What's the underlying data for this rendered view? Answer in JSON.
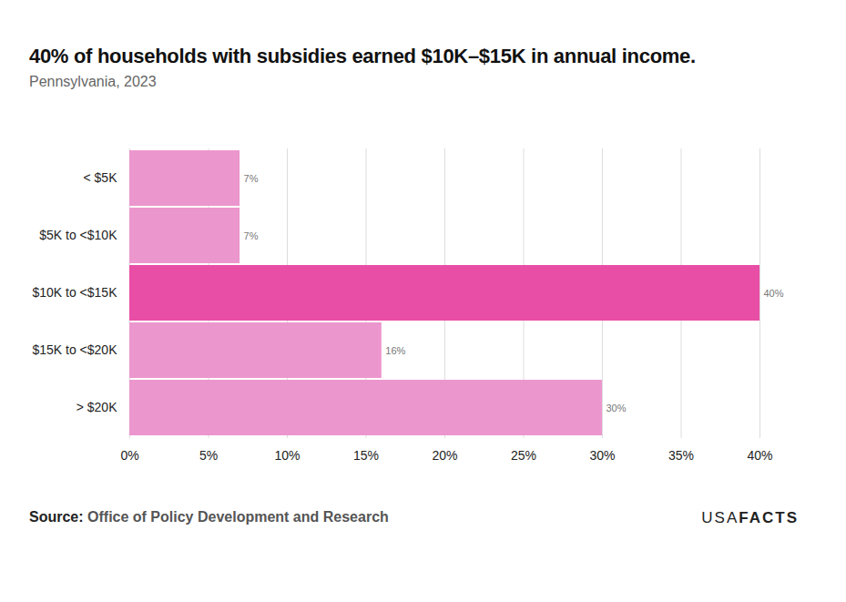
{
  "chart_data": {
    "type": "bar",
    "orientation": "horizontal",
    "title": "40% of households with subsidies earned $10K–$15K in annual income.",
    "subtitle": "Pennsylvania, 2023",
    "source_label": "Source:",
    "source": "Office of Policy Development and Research",
    "logo": [
      "USA",
      "FACTS"
    ],
    "categories": [
      "< $5K",
      "$5K to <$10K",
      "$10K to <$15K",
      "$15K to <$20K",
      "> $20K"
    ],
    "values": [
      7,
      7,
      40,
      16,
      30
    ],
    "value_labels": [
      "7%",
      "7%",
      "40%",
      "16%",
      "30%"
    ],
    "colors": [
      "#ec96ce",
      "#ec96ce",
      "#e84ea6",
      "#ec96ce",
      "#ec96ce"
    ],
    "xlim": [
      0,
      40
    ],
    "xticks": [
      {
        "value": 0,
        "label": "0%"
      },
      {
        "value": 5,
        "label": "5%"
      },
      {
        "value": 10,
        "label": "10%"
      },
      {
        "value": 15,
        "label": "15%"
      },
      {
        "value": 20,
        "label": "20%"
      },
      {
        "value": 25,
        "label": "25%"
      },
      {
        "value": 30,
        "label": "30%"
      },
      {
        "value": 35,
        "label": "35%"
      },
      {
        "value": 40,
        "label": "40%"
      }
    ],
    "grid": true,
    "data_labels": true
  }
}
